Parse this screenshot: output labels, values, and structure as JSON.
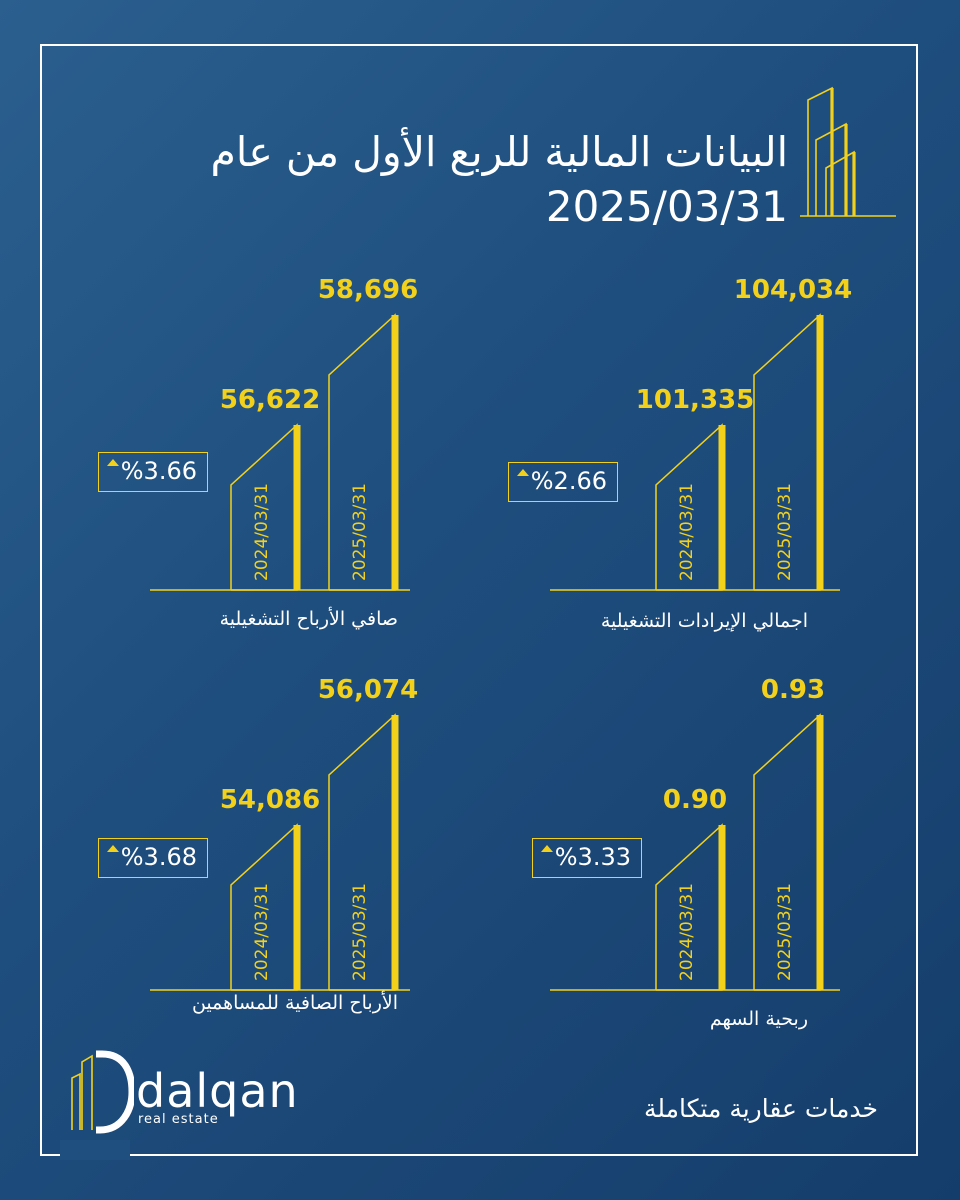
{
  "title": "البيانات المالية للربع الأول من عام",
  "date": "2025/03/31",
  "colors": {
    "accent": "#f3d11a",
    "text": "#ffffff",
    "background": "#1f4f7f"
  },
  "brand": {
    "name": "dalqan",
    "sub": "real estate"
  },
  "tagline": "خدمات عقارية متكاملة",
  "chart_data": [
    {
      "type": "bar",
      "title": "اجمالي الإيرادات التشغيلية",
      "categories": [
        "2024/03/31",
        "2025/03/31"
      ],
      "values": [
        101335,
        104034
      ],
      "labels": [
        "101,335",
        "104,034"
      ],
      "change": "%2.66",
      "direction": "up"
    },
    {
      "type": "bar",
      "title": "صافي الأرباح التشغيلية",
      "categories": [
        "2024/03/31",
        "2025/03/31"
      ],
      "values": [
        56622,
        58696
      ],
      "labels": [
        "56,622",
        "58,696"
      ],
      "change": "%3.66",
      "direction": "up"
    },
    {
      "type": "bar",
      "title": "ربحية السهم",
      "categories": [
        "2024/03/31",
        "2025/03/31"
      ],
      "values": [
        0.9,
        0.93
      ],
      "labels": [
        "0.90",
        "0.93"
      ],
      "change": "%3.33",
      "direction": "up"
    },
    {
      "type": "bar",
      "title": "الأرباح الصافية للمساهمين",
      "categories": [
        "2024/03/31",
        "2025/03/31"
      ],
      "values": [
        54086,
        56074
      ],
      "labels": [
        "54,086",
        "56,074"
      ],
      "change": "%3.68",
      "direction": "up"
    }
  ]
}
